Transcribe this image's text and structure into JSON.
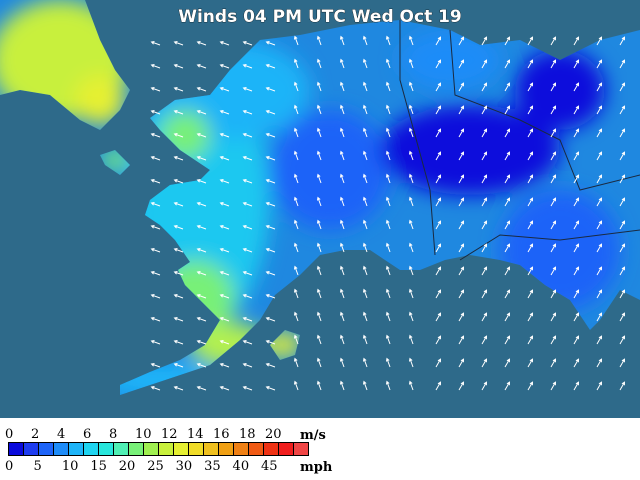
{
  "map": {
    "title": "Winds 04 PM UTC Wed Oct 19",
    "ocean_color": "#2e6a8a"
  },
  "legend": {
    "ms_unit": "m/s",
    "mph_unit": "mph",
    "ms_ticks": [
      "0",
      "2",
      "4",
      "6",
      "8",
      "10",
      "12",
      "14",
      "16",
      "18",
      "20"
    ],
    "mph_ticks": [
      "0",
      "5",
      "10",
      "15",
      "20",
      "25",
      "30",
      "35",
      "40",
      "45"
    ],
    "colors": [
      "#0a0adc",
      "#1e3cf0",
      "#1e64f8",
      "#1e8cf8",
      "#1eb4f8",
      "#1ed4f0",
      "#28e6dc",
      "#50f0b4",
      "#78f078",
      "#a0f050",
      "#c8f03c",
      "#e6f032",
      "#f0dc28",
      "#f0c01e",
      "#f0a014",
      "#f08014",
      "#f05a14",
      "#f03214",
      "#f01e1e",
      "#f04646"
    ]
  }
}
